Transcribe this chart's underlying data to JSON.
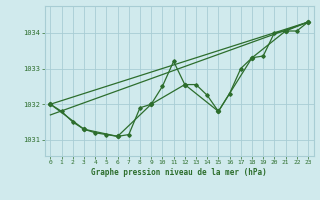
{
  "title": "Graphe pression niveau de la mer (hPa)",
  "bg_color": "#d0eaed",
  "grid_color": "#a8cdd4",
  "line_color": "#2d6e2d",
  "marker_color": "#2d6e2d",
  "xlim": [
    -0.5,
    23.5
  ],
  "ylim": [
    1030.55,
    1034.75
  ],
  "yticks": [
    1031,
    1032,
    1033,
    1034
  ],
  "xticks": [
    0,
    1,
    2,
    3,
    4,
    5,
    6,
    7,
    8,
    9,
    10,
    11,
    12,
    13,
    14,
    15,
    16,
    17,
    18,
    19,
    20,
    21,
    22,
    23
  ],
  "series1": {
    "x": [
      0,
      1,
      2,
      3,
      4,
      5,
      6,
      7,
      8,
      9,
      10,
      11,
      12,
      13,
      14,
      15,
      16,
      17,
      18,
      19,
      20,
      21,
      22,
      23
    ],
    "y": [
      1032.0,
      1031.8,
      1031.5,
      1031.3,
      1031.2,
      1031.15,
      1031.1,
      1031.15,
      1031.9,
      1032.0,
      1032.5,
      1033.2,
      1032.55,
      1032.55,
      1032.25,
      1031.8,
      1032.3,
      1033.0,
      1033.3,
      1033.35,
      1034.0,
      1034.05,
      1034.05,
      1034.3
    ]
  },
  "series2": {
    "x": [
      0,
      3,
      6,
      9,
      12,
      15,
      18,
      21,
      23
    ],
    "y": [
      1032.0,
      1031.3,
      1031.1,
      1032.0,
      1032.55,
      1031.8,
      1033.3,
      1034.05,
      1034.3
    ]
  },
  "series3": {
    "x": [
      0,
      23
    ],
    "y": [
      1031.7,
      1034.3
    ]
  },
  "series4": {
    "x": [
      0,
      23
    ],
    "y": [
      1032.0,
      1034.3
    ]
  }
}
